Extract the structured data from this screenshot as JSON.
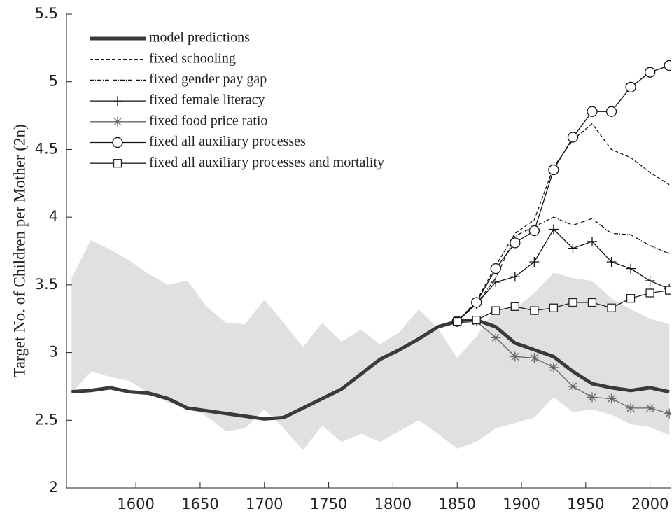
{
  "chart_data": {
    "type": "line",
    "ylabel": "Target No. of Children per Mother (2n)",
    "xlim": [
      1546,
      2016
    ],
    "ylim": [
      2,
      5.5
    ],
    "xticks": [
      1600,
      1650,
      1700,
      1750,
      1800,
      1850,
      1900,
      1950,
      2000
    ],
    "yticks": [
      2,
      2.5,
      3,
      3.5,
      4,
      4.5,
      5,
      5.5
    ],
    "x": [
      1550,
      1565,
      1580,
      1595,
      1610,
      1625,
      1640,
      1655,
      1670,
      1685,
      1700,
      1715,
      1730,
      1745,
      1760,
      1775,
      1790,
      1805,
      1820,
      1835,
      1850,
      1865,
      1880,
      1895,
      1910,
      1925,
      1940,
      1955,
      1970,
      1985,
      2000,
      2015
    ],
    "band": {
      "color": "#e0e0e0",
      "upper": [
        3.55,
        3.83,
        3.76,
        3.68,
        3.58,
        3.5,
        3.53,
        3.34,
        3.22,
        3.21,
        3.39,
        3.22,
        3.04,
        3.22,
        3.08,
        3.17,
        3.06,
        3.15,
        3.32,
        3.18,
        2.96,
        3.12,
        3.33,
        3.32,
        3.44,
        3.59,
        3.55,
        3.53,
        3.4,
        3.32,
        3.25,
        3.21
      ],
      "lower": [
        2.7,
        2.86,
        2.82,
        2.79,
        2.7,
        2.63,
        2.61,
        2.53,
        2.42,
        2.44,
        2.58,
        2.44,
        2.28,
        2.46,
        2.34,
        2.4,
        2.34,
        2.42,
        2.5,
        2.4,
        2.29,
        2.34,
        2.44,
        2.48,
        2.52,
        2.67,
        2.56,
        2.58,
        2.54,
        2.47,
        2.45,
        2.39
      ]
    },
    "series": [
      {
        "name": "model predictions",
        "color": "#3a3a3a",
        "width": 5,
        "dash": "none",
        "marker": "none",
        "values": [
          2.71,
          2.72,
          2.74,
          2.71,
          2.7,
          2.66,
          2.59,
          2.57,
          2.55,
          2.53,
          2.51,
          2.52,
          2.59,
          2.66,
          2.73,
          2.84,
          2.95,
          3.02,
          3.1,
          3.19,
          3.23,
          3.24,
          3.19,
          3.07,
          3.02,
          2.97,
          2.86,
          2.77,
          2.74,
          2.72,
          2.74,
          2.71
        ]
      },
      {
        "name": "fixed schooling",
        "color": "#111111",
        "width": 1.3,
        "dash": "5 3",
        "marker": "none",
        "values": [
          null,
          null,
          null,
          null,
          null,
          null,
          null,
          null,
          null,
          null,
          null,
          null,
          null,
          null,
          null,
          null,
          null,
          null,
          null,
          null,
          3.23,
          3.38,
          3.64,
          3.88,
          3.98,
          4.37,
          4.57,
          4.69,
          4.5,
          4.44,
          4.33,
          4.24
        ]
      },
      {
        "name": "fixed gender pay gap",
        "color": "#111111",
        "width": 1.3,
        "dash": "6 2 1 2",
        "marker": "none",
        "values": [
          null,
          null,
          null,
          null,
          null,
          null,
          null,
          null,
          null,
          null,
          null,
          null,
          null,
          null,
          null,
          null,
          null,
          null,
          null,
          null,
          3.23,
          3.36,
          3.55,
          3.86,
          3.93,
          4.0,
          3.94,
          3.99,
          3.88,
          3.87,
          3.79,
          3.73
        ]
      },
      {
        "name": "fixed female literacy",
        "color": "#111111",
        "width": 1.3,
        "dash": "none",
        "marker": "plus",
        "values": [
          null,
          null,
          null,
          null,
          null,
          null,
          null,
          null,
          null,
          null,
          null,
          null,
          null,
          null,
          null,
          null,
          null,
          null,
          null,
          null,
          3.23,
          3.36,
          3.52,
          3.56,
          3.67,
          3.91,
          3.77,
          3.82,
          3.67,
          3.62,
          3.53,
          3.47
        ]
      },
      {
        "name": "fixed food price ratio",
        "color": "#666666",
        "width": 1.3,
        "dash": "none",
        "marker": "star",
        "values": [
          null,
          null,
          null,
          null,
          null,
          null,
          null,
          null,
          null,
          null,
          null,
          null,
          null,
          null,
          null,
          null,
          null,
          null,
          null,
          null,
          3.23,
          3.23,
          3.11,
          2.97,
          2.96,
          2.89,
          2.75,
          2.67,
          2.66,
          2.59,
          2.59,
          2.55
        ]
      },
      {
        "name": "fixed all auxiliary processes",
        "color": "#111111",
        "width": 1.3,
        "dash": "none",
        "marker": "circle",
        "values": [
          null,
          null,
          null,
          null,
          null,
          null,
          null,
          null,
          null,
          null,
          null,
          null,
          null,
          null,
          null,
          null,
          null,
          null,
          null,
          null,
          3.23,
          3.37,
          3.62,
          3.81,
          3.9,
          4.35,
          4.59,
          4.78,
          4.78,
          4.96,
          5.07,
          5.12
        ]
      },
      {
        "name": "fixed all auxiliary processes and mortality",
        "color": "#222222",
        "width": 1.3,
        "dash": "none",
        "marker": "square",
        "values": [
          null,
          null,
          null,
          null,
          null,
          null,
          null,
          null,
          null,
          null,
          null,
          null,
          null,
          null,
          null,
          null,
          null,
          null,
          null,
          null,
          3.23,
          3.24,
          3.31,
          3.34,
          3.31,
          3.33,
          3.37,
          3.37,
          3.33,
          3.4,
          3.44,
          3.46
        ]
      }
    ]
  }
}
